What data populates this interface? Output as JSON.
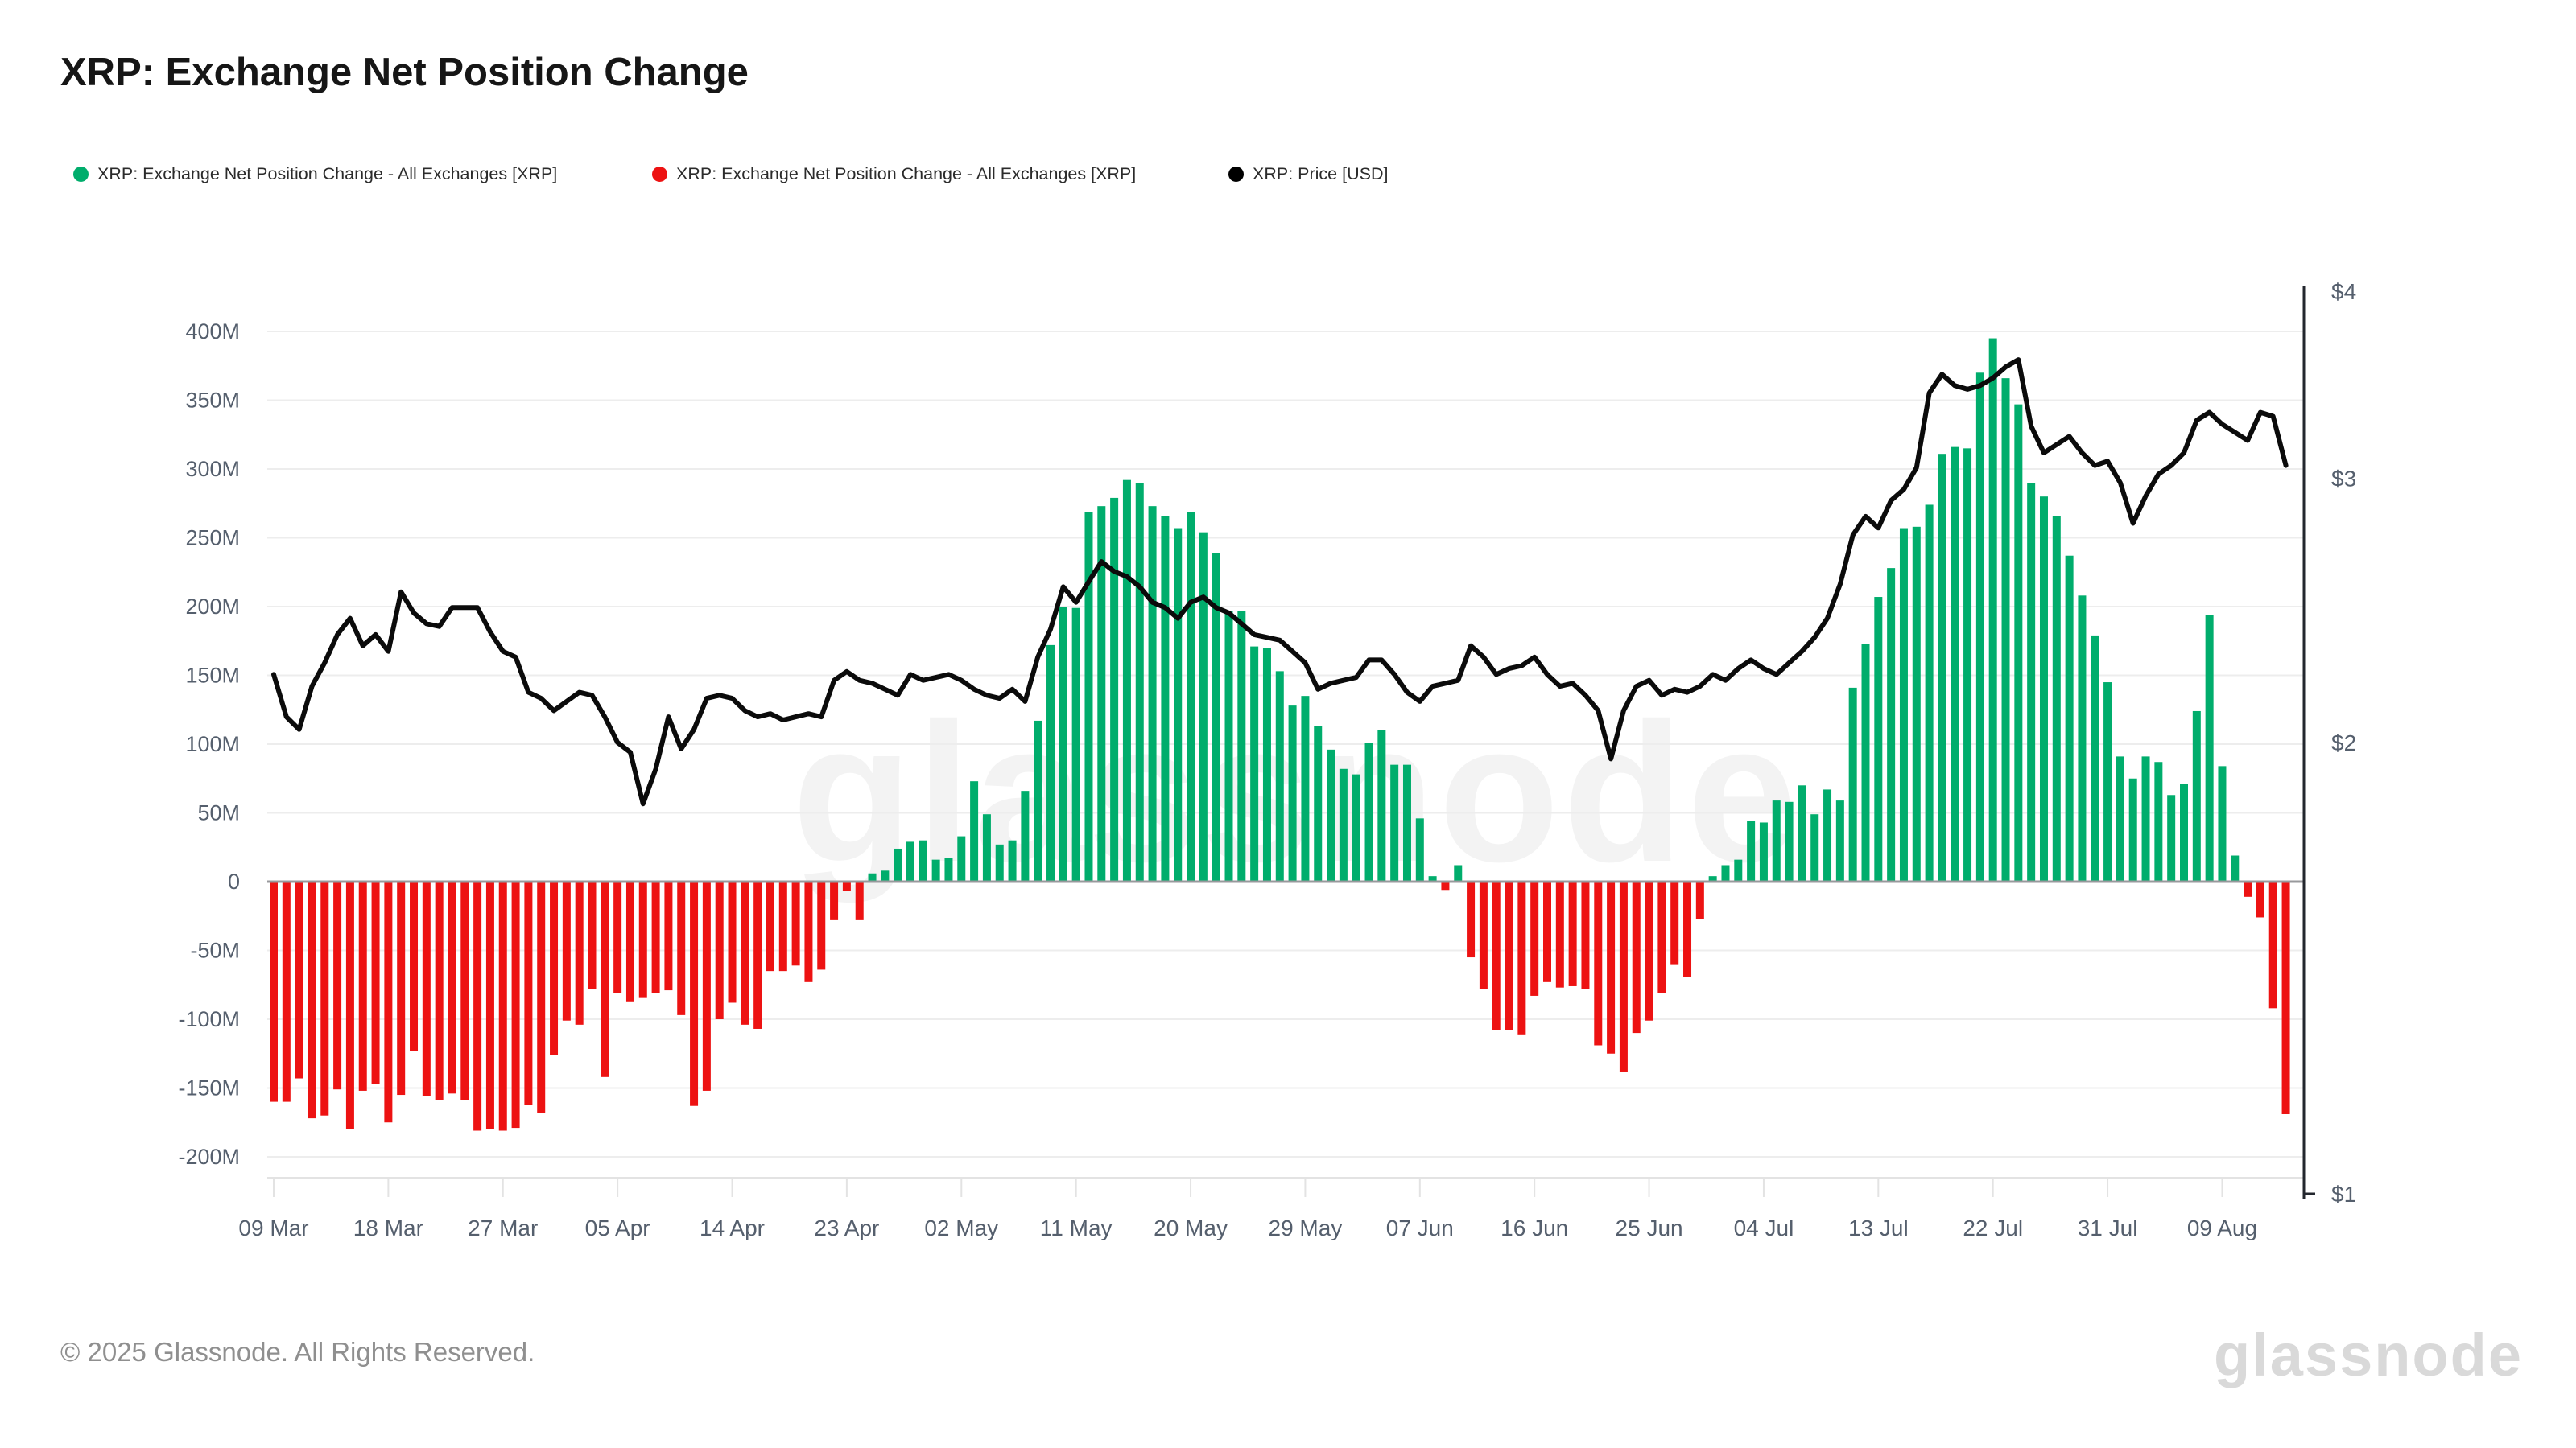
{
  "page": {
    "title": "XRP: Exchange Net Position Change",
    "background": "#ffffff"
  },
  "legend": {
    "items": [
      {
        "label": "XRP: Exchange Net Position Change - All Exchanges [XRP]",
        "color": "#00ad6c"
      },
      {
        "label": "XRP: Exchange Net Position Change - All Exchanges [XRP]",
        "color": "#ed1212"
      },
      {
        "label": "XRP: Price [USD]",
        "color": "#000000"
      }
    ]
  },
  "watermark": {
    "text": "glassnode"
  },
  "footer": {
    "copyright": "© 2025 Glassnode. All Rights Reserved.",
    "logo_text": "glassnode"
  },
  "chart_data": {
    "type": "bar+line combo",
    "title": "XRP: Exchange Net Position Change",
    "grid": true,
    "legend_position": "top-left",
    "colors": {
      "bar_positive": "#00ad6c",
      "bar_negative": "#ed1212",
      "price_line": "#0b0b0b",
      "gridline": "#ededed",
      "zero_line": "#98999c",
      "axis_text": "#555f6d",
      "bottom_border": "#e3e3e3",
      "right_axis_line": "#23272e"
    },
    "x_axis": {
      "tick_labels": [
        "09 Mar",
        "18 Mar",
        "27 Mar",
        "05 Apr",
        "14 Apr",
        "23 Apr",
        "02 May",
        "11 May",
        "20 May",
        "29 May",
        "07 Jun",
        "16 Jun",
        "25 Jun",
        "04 Jul",
        "13 Jul",
        "22 Jul",
        "31 Jul",
        "09 Aug"
      ],
      "tick_day_offsets": [
        0,
        9,
        18,
        27,
        36,
        45,
        54,
        63,
        72,
        81,
        90,
        99,
        108,
        117,
        126,
        135,
        144,
        153
      ],
      "days_total": 159
    },
    "y_axis_left": {
      "tick_labels": [
        "400M",
        "350M",
        "300M",
        "250M",
        "200M",
        "150M",
        "100M",
        "50M",
        "0",
        "-50M",
        "-100M",
        "-150M",
        "-200M"
      ],
      "tick_values_millions": [
        400,
        350,
        300,
        250,
        200,
        150,
        100,
        50,
        0,
        -50,
        -100,
        -150,
        -200
      ],
      "range_millions": [
        -225,
        430
      ],
      "scale": "linear"
    },
    "y_axis_right": {
      "tick_labels": [
        "$4",
        "$3",
        "$2",
        "$1"
      ],
      "tick_values_usd": [
        4,
        3,
        2,
        1
      ],
      "range_usd": [
        1,
        4
      ],
      "scale": "log"
    },
    "series": [
      {
        "name": "XRP: Exchange Net Position Change - All Exchanges [XRP]",
        "type": "bar",
        "axis": "left",
        "units": "XRP (millions)",
        "values_millions": [
          -160,
          -160,
          -143,
          -172,
          -170,
          -151,
          -180,
          -152,
          -147,
          -175,
          -155,
          -123,
          -156,
          -159,
          -154,
          -159,
          -181,
          -180,
          -181,
          -179,
          -162,
          -168,
          -126,
          -101,
          -104,
          -78,
          -142,
          -81,
          -87,
          -84,
          -81,
          -79,
          -97,
          -163,
          -152,
          -100,
          -88,
          -104,
          -107,
          -65,
          -65,
          -61,
          -73,
          -64,
          -28,
          -7,
          -28,
          6,
          8,
          24,
          29,
          30,
          16,
          17,
          33,
          73,
          49,
          27,
          30,
          66,
          117,
          172,
          200,
          199,
          269,
          273,
          279,
          292,
          290,
          273,
          266,
          257,
          269,
          254,
          239,
          197,
          197,
          171,
          170,
          153,
          128,
          135,
          113,
          96,
          82,
          78,
          101,
          110,
          85,
          85,
          46,
          4,
          -6,
          12,
          -55,
          -78,
          -108,
          -108,
          -111,
          -83,
          -73,
          -77,
          -76,
          -78,
          -119,
          -125,
          -138,
          -110,
          -101,
          -81,
          -60,
          -69,
          -27,
          4,
          12,
          16,
          44,
          43,
          59,
          58,
          70,
          49,
          67,
          59,
          141,
          173,
          207,
          228,
          257,
          258,
          274,
          311,
          316,
          315,
          370,
          395,
          366,
          347,
          290,
          280,
          266,
          237,
          208,
          179,
          145,
          91,
          75,
          91,
          87,
          63,
          71,
          124,
          194,
          84,
          19,
          -11,
          -26,
          -92,
          -169
        ]
      },
      {
        "name": "XRP: Price [USD]",
        "type": "line",
        "axis": "right",
        "units": "USD",
        "values_usd": [
          2.22,
          2.08,
          2.04,
          2.18,
          2.26,
          2.36,
          2.42,
          2.32,
          2.36,
          2.3,
          2.52,
          2.44,
          2.4,
          2.39,
          2.46,
          2.46,
          2.46,
          2.37,
          2.3,
          2.28,
          2.16,
          2.14,
          2.1,
          2.13,
          2.16,
          2.15,
          2.08,
          2.0,
          1.97,
          1.82,
          1.92,
          2.08,
          1.98,
          2.04,
          2.14,
          2.15,
          2.14,
          2.1,
          2.08,
          2.09,
          2.07,
          2.08,
          2.09,
          2.08,
          2.2,
          2.23,
          2.2,
          2.19,
          2.17,
          2.15,
          2.22,
          2.2,
          2.21,
          2.22,
          2.2,
          2.17,
          2.15,
          2.14,
          2.17,
          2.13,
          2.28,
          2.38,
          2.54,
          2.48,
          2.56,
          2.64,
          2.6,
          2.58,
          2.54,
          2.48,
          2.46,
          2.42,
          2.48,
          2.5,
          2.46,
          2.44,
          2.4,
          2.36,
          2.35,
          2.34,
          2.3,
          2.26,
          2.17,
          2.19,
          2.2,
          2.21,
          2.27,
          2.27,
          2.22,
          2.16,
          2.13,
          2.18,
          2.19,
          2.2,
          2.32,
          2.28,
          2.22,
          2.24,
          2.25,
          2.28,
          2.22,
          2.18,
          2.19,
          2.15,
          2.1,
          1.95,
          2.1,
          2.18,
          2.2,
          2.15,
          2.17,
          2.16,
          2.18,
          2.22,
          2.2,
          2.24,
          2.27,
          2.24,
          2.22,
          2.26,
          2.3,
          2.35,
          2.42,
          2.55,
          2.75,
          2.83,
          2.78,
          2.9,
          2.95,
          3.05,
          3.42,
          3.52,
          3.46,
          3.44,
          3.46,
          3.5,
          3.56,
          3.6,
          3.25,
          3.12,
          3.16,
          3.2,
          3.12,
          3.06,
          3.08,
          2.98,
          2.8,
          2.92,
          3.02,
          3.06,
          3.12,
          3.28,
          3.32,
          3.26,
          3.22,
          3.18,
          3.32,
          3.3,
          3.06
        ]
      }
    ]
  }
}
